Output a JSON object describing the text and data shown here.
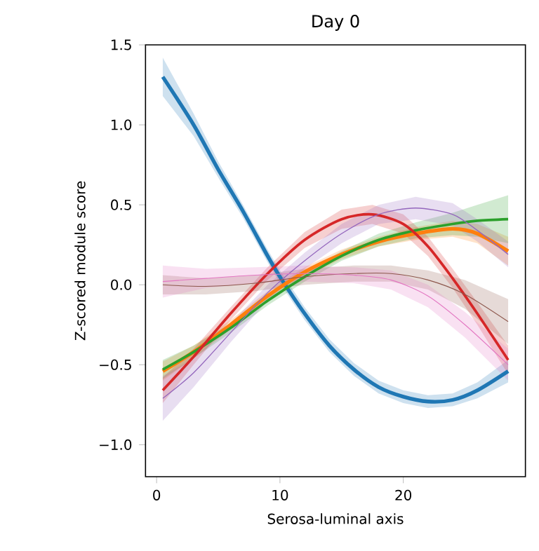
{
  "chart_data": {
    "type": "line",
    "title": "Day 0",
    "xlabel": "Serosa-luminal axis",
    "ylabel": "Z-scored module score",
    "xlim": [
      -0.9,
      29.9
    ],
    "ylim": [
      -1.2,
      1.5
    ],
    "xticks": [
      0,
      10,
      20
    ],
    "yticks": [
      {
        "value": -1,
        "label": "−1.0"
      },
      {
        "value": -0.5,
        "label": "−0.5"
      },
      {
        "value": 0,
        "label": "0.0"
      },
      {
        "value": 0.5,
        "label": "0.5"
      },
      {
        "value": 1,
        "label": "1.0"
      },
      {
        "value": 1.5,
        "label": "1.5"
      }
    ],
    "series": [
      {
        "color": "#1f77b4",
        "x": [
          0.5,
          3,
          5,
          7,
          9,
          10,
          12,
          14,
          16,
          18,
          20,
          22,
          24,
          26,
          28.5
        ],
        "values": [
          1.3,
          1.0,
          0.72,
          0.46,
          0.18,
          0.05,
          -0.18,
          -0.38,
          -0.53,
          -0.64,
          -0.7,
          -0.73,
          -0.72,
          -0.66,
          -0.54
        ],
        "lower": [
          1.18,
          0.93,
          0.67,
          0.42,
          0.14,
          0.01,
          -0.22,
          -0.42,
          -0.57,
          -0.68,
          -0.74,
          -0.77,
          -0.76,
          -0.71,
          -0.61
        ],
        "upper": [
          1.42,
          1.07,
          0.77,
          0.5,
          0.22,
          0.09,
          -0.14,
          -0.34,
          -0.49,
          -0.6,
          -0.66,
          -0.69,
          -0.68,
          -0.61,
          -0.47
        ]
      },
      {
        "color": "#ff7f0e",
        "x": [
          0.5,
          3,
          6,
          9,
          12,
          15,
          18,
          21,
          24,
          26,
          28.5
        ],
        "values": [
          -0.54,
          -0.42,
          -0.25,
          -0.07,
          0.08,
          0.19,
          0.27,
          0.32,
          0.35,
          0.32,
          0.21
        ],
        "lower": [
          -0.6,
          -0.46,
          -0.28,
          -0.1,
          0.05,
          0.16,
          0.24,
          0.28,
          0.3,
          0.26,
          0.12
        ],
        "upper": [
          -0.48,
          -0.38,
          -0.22,
          -0.04,
          0.11,
          0.22,
          0.3,
          0.36,
          0.4,
          0.38,
          0.3
        ]
      },
      {
        "color": "#2ca02c",
        "x": [
          0.5,
          3,
          6,
          9,
          12,
          15,
          18,
          21,
          24,
          26,
          28.5
        ],
        "values": [
          -0.53,
          -0.42,
          -0.27,
          -0.1,
          0.05,
          0.18,
          0.28,
          0.34,
          0.38,
          0.4,
          0.41
        ],
        "lower": [
          -0.59,
          -0.46,
          -0.3,
          -0.13,
          0.02,
          0.15,
          0.24,
          0.29,
          0.31,
          0.3,
          0.26
        ],
        "upper": [
          -0.47,
          -0.38,
          -0.24,
          -0.07,
          0.08,
          0.21,
          0.32,
          0.39,
          0.45,
          0.5,
          0.56
        ]
      },
      {
        "color": "#d62728",
        "x": [
          0.5,
          3,
          6,
          9,
          12,
          15,
          17.5,
          20,
          22,
          24,
          26,
          28.5
        ],
        "values": [
          -0.66,
          -0.45,
          -0.18,
          0.07,
          0.28,
          0.41,
          0.44,
          0.38,
          0.24,
          0.04,
          -0.18,
          -0.47
        ],
        "lower": [
          -0.74,
          -0.5,
          -0.22,
          0.03,
          0.23,
          0.35,
          0.38,
          0.32,
          0.18,
          -0.02,
          -0.25,
          -0.56
        ],
        "upper": [
          -0.58,
          -0.4,
          -0.14,
          0.11,
          0.33,
          0.47,
          0.5,
          0.44,
          0.3,
          0.1,
          -0.11,
          -0.38
        ]
      },
      {
        "color": "#9467bd",
        "x": [
          0.5,
          3,
          6,
          9,
          12,
          15,
          18,
          21,
          24,
          26,
          28.5
        ],
        "values": [
          -0.71,
          -0.55,
          -0.3,
          -0.05,
          0.15,
          0.32,
          0.44,
          0.48,
          0.44,
          0.34,
          0.19
        ],
        "lower": [
          -0.85,
          -0.64,
          -0.36,
          -0.1,
          0.1,
          0.26,
          0.38,
          0.41,
          0.37,
          0.27,
          0.11
        ],
        "upper": [
          -0.57,
          -0.46,
          -0.24,
          0.0,
          0.2,
          0.38,
          0.5,
          0.55,
          0.51,
          0.41,
          0.27
        ]
      },
      {
        "color": "#8c564b",
        "x": [
          0.5,
          4,
          8,
          12,
          16,
          19,
          22,
          25,
          28.5
        ],
        "values": [
          0.0,
          -0.01,
          0.01,
          0.05,
          0.07,
          0.07,
          0.03,
          -0.06,
          -0.23
        ],
        "lower": [
          -0.06,
          -0.06,
          -0.04,
          0.0,
          0.02,
          0.02,
          -0.03,
          -0.15,
          -0.37
        ],
        "upper": [
          0.06,
          0.04,
          0.06,
          0.1,
          0.12,
          0.12,
          0.09,
          0.03,
          -0.09
        ]
      },
      {
        "color": "#e377c2",
        "x": [
          0.5,
          4,
          8,
          12,
          16,
          19,
          22,
          25,
          28.5
        ],
        "values": [
          0.02,
          0.04,
          0.06,
          0.07,
          0.06,
          0.03,
          -0.07,
          -0.25,
          -0.5
        ],
        "lower": [
          -0.08,
          -0.02,
          0.01,
          0.02,
          0.01,
          -0.03,
          -0.14,
          -0.33,
          -0.6
        ],
        "upper": [
          0.12,
          0.1,
          0.11,
          0.12,
          0.11,
          0.09,
          0.0,
          -0.17,
          -0.4
        ]
      }
    ]
  }
}
